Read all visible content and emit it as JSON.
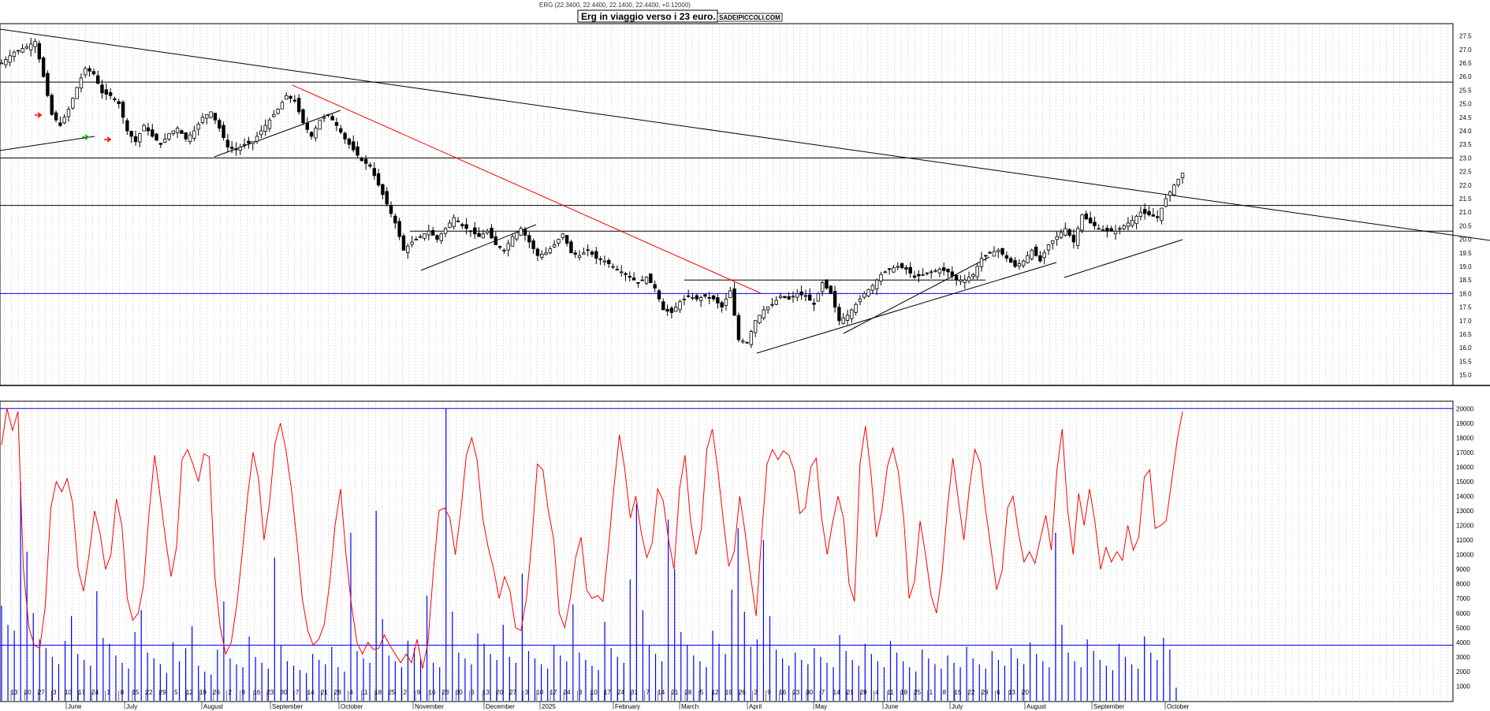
{
  "header": {
    "ohlc_text": "ERG (22.3400, 22.4400, 22.1400, 22.4400, +0.12000)",
    "title_box": "Erg in viaggio verso i 23 euro.",
    "watermark": "SADEIPICCOLI.COM"
  },
  "colors": {
    "background": "#ffffff",
    "grid": "#c8c8c8",
    "candle": "#000000",
    "trendline_black": "#000000",
    "trendline_red": "#ff0000",
    "support_blue": "#0000ff",
    "volume_bar": "#0000ff",
    "oscillator": "#ff0000",
    "arrow_green": "#00aa00",
    "arrow_red": "#ff0000"
  },
  "chart_data": [
    {
      "type": "candlestick",
      "ticker": "ERG",
      "ylim": [
        15.0,
        27.75
      ],
      "y_ticks": [
        "27.5",
        "27.0",
        "26.5",
        "26.0",
        "25.5",
        "25.0",
        "24.5",
        "24.0",
        "23.5",
        "23.0",
        "22.5",
        "22.0",
        "21.5",
        "21.0",
        "20.5",
        "20.0",
        "19.5",
        "19.0",
        "18.5",
        "18.0",
        "17.5",
        "17.0",
        "16.5",
        "16.0",
        "15.5",
        "15.0"
      ],
      "horizontal_levels_black": [
        25.8,
        23.0,
        21.25,
        20.3,
        18.5
      ],
      "horizontal_level_blue": 18.0,
      "price_path": [
        [
          0,
          26.5
        ],
        [
          3,
          26.9
        ],
        [
          6,
          27.1
        ],
        [
          8,
          27.3
        ],
        [
          10,
          26.0
        ],
        [
          12,
          24.6
        ],
        [
          14,
          24.2
        ],
        [
          16,
          24.8
        ],
        [
          18,
          25.6
        ],
        [
          20,
          26.3
        ],
        [
          22,
          26.1
        ],
        [
          24,
          25.4
        ],
        [
          26,
          25.3
        ],
        [
          28,
          25.0
        ],
        [
          30,
          24.0
        ],
        [
          32,
          23.6
        ],
        [
          34,
          24.2
        ],
        [
          36,
          23.8
        ],
        [
          38,
          23.5
        ],
        [
          40,
          23.9
        ],
        [
          42,
          24.1
        ],
        [
          44,
          23.7
        ],
        [
          46,
          24.0
        ],
        [
          48,
          24.5
        ],
        [
          50,
          24.7
        ],
        [
          52,
          24.1
        ],
        [
          54,
          23.4
        ],
        [
          56,
          23.3
        ],
        [
          58,
          23.5
        ],
        [
          60,
          23.6
        ],
        [
          62,
          24.0
        ],
        [
          64,
          24.4
        ],
        [
          66,
          24.8
        ],
        [
          68,
          25.3
        ],
        [
          70,
          25.1
        ],
        [
          72,
          24.3
        ],
        [
          74,
          23.8
        ],
        [
          76,
          24.4
        ],
        [
          78,
          24.6
        ],
        [
          80,
          24.2
        ],
        [
          82,
          23.7
        ],
        [
          84,
          23.3
        ],
        [
          86,
          22.9
        ],
        [
          88,
          22.7
        ],
        [
          90,
          22.0
        ],
        [
          92,
          21.3
        ],
        [
          94,
          20.6
        ],
        [
          96,
          19.6
        ],
        [
          98,
          19.9
        ],
        [
          100,
          20.1
        ],
        [
          102,
          20.3
        ],
        [
          104,
          20.0
        ],
        [
          106,
          20.4
        ],
        [
          108,
          20.8
        ],
        [
          110,
          20.5
        ],
        [
          112,
          20.3
        ],
        [
          114,
          20.1
        ],
        [
          116,
          20.3
        ],
        [
          118,
          19.8
        ],
        [
          120,
          19.6
        ],
        [
          122,
          20.1
        ],
        [
          124,
          20.4
        ],
        [
          126,
          19.9
        ],
        [
          128,
          19.4
        ],
        [
          130,
          19.5
        ],
        [
          132,
          19.8
        ],
        [
          134,
          20.2
        ],
        [
          136,
          19.5
        ],
        [
          138,
          19.4
        ],
        [
          140,
          19.6
        ],
        [
          142,
          19.3
        ],
        [
          144,
          19.2
        ],
        [
          146,
          19.0
        ],
        [
          148,
          18.8
        ],
        [
          150,
          18.6
        ],
        [
          152,
          18.4
        ],
        [
          154,
          18.6
        ],
        [
          156,
          18.2
        ],
        [
          158,
          17.4
        ],
        [
          160,
          17.3
        ],
        [
          162,
          17.7
        ],
        [
          164,
          17.9
        ],
        [
          166,
          17.8
        ],
        [
          168,
          17.9
        ],
        [
          170,
          17.8
        ],
        [
          172,
          17.5
        ],
        [
          174,
          18.1
        ],
        [
          176,
          16.3
        ],
        [
          178,
          16.2
        ],
        [
          180,
          17.0
        ],
        [
          182,
          17.4
        ],
        [
          184,
          17.6
        ],
        [
          186,
          17.9
        ],
        [
          188,
          17.8
        ],
        [
          190,
          18.0
        ],
        [
          192,
          17.9
        ],
        [
          194,
          17.6
        ],
        [
          196,
          18.4
        ],
        [
          198,
          18.0
        ],
        [
          200,
          17.0
        ],
        [
          202,
          17.2
        ],
        [
          204,
          17.6
        ],
        [
          206,
          18.0
        ],
        [
          208,
          18.3
        ],
        [
          210,
          18.7
        ],
        [
          212,
          18.9
        ],
        [
          214,
          19.0
        ],
        [
          216,
          18.9
        ],
        [
          218,
          18.6
        ],
        [
          220,
          18.7
        ],
        [
          222,
          18.8
        ],
        [
          224,
          18.9
        ],
        [
          226,
          18.8
        ],
        [
          228,
          18.5
        ],
        [
          230,
          18.5
        ],
        [
          232,
          18.7
        ],
        [
          234,
          19.3
        ],
        [
          236,
          19.5
        ],
        [
          238,
          19.6
        ],
        [
          240,
          19.3
        ],
        [
          242,
          19.0
        ],
        [
          244,
          19.2
        ],
        [
          246,
          19.6
        ],
        [
          248,
          19.2
        ],
        [
          250,
          19.8
        ],
        [
          252,
          20.1
        ],
        [
          254,
          20.4
        ],
        [
          256,
          19.9
        ],
        [
          258,
          20.9
        ],
        [
          260,
          20.6
        ],
        [
          262,
          20.4
        ],
        [
          264,
          20.3
        ],
        [
          266,
          20.3
        ],
        [
          268,
          20.5
        ],
        [
          270,
          20.7
        ],
        [
          272,
          21.0
        ],
        [
          274,
          20.9
        ],
        [
          276,
          20.8
        ],
        [
          278,
          21.5
        ],
        [
          280,
          22.0
        ],
        [
          282,
          22.44
        ]
      ]
    },
    {
      "type": "bar",
      "series_name": "volume",
      "ylim": [
        0,
        20500
      ],
      "y_ticks": [
        "20000",
        "19000",
        "18000",
        "17000",
        "16000",
        "15000",
        "14000",
        "13000",
        "12000",
        "11000",
        "10000",
        "9000",
        "8000",
        "7000",
        "6000",
        "5000",
        "4000",
        "3000",
        "2000",
        "1000"
      ],
      "horizontal_level": 3800,
      "values": [
        6500,
        5200,
        4800,
        15000,
        10200,
        6000,
        4200,
        3600,
        3000,
        2500,
        4100,
        5800,
        3200,
        2800,
        2400,
        7500,
        4300,
        3900,
        3100,
        2600,
        2200,
        4700,
        6200,
        3300,
        2900,
        2500,
        1900,
        4000,
        2700,
        3600,
        5100,
        2400,
        2000,
        1800,
        3500,
        6800,
        2900,
        2500,
        2300,
        4400,
        3000,
        2600,
        2200,
        9800,
        3800,
        2700,
        2400,
        2100,
        1900,
        3200,
        2800,
        2500,
        3700,
        2300,
        2000,
        11500,
        3400,
        2900,
        2600,
        13000,
        5600,
        3100,
        2700,
        2300,
        4100,
        3600,
        2900,
        7200,
        2600,
        2300,
        20000,
        6100,
        3300,
        2900,
        2500,
        4600,
        3900,
        3200,
        2800,
        5200,
        3000,
        2600,
        8700,
        3400,
        2900,
        2500,
        2200,
        3800,
        3100,
        2700,
        6600,
        3300,
        2800,
        2400,
        2100,
        5400,
        3600,
        3000,
        2600,
        8300,
        13500,
        6200,
        3800,
        3200,
        2700,
        12400,
        9000,
        4700,
        3800,
        3100,
        2700,
        2300,
        4800,
        3900,
        3200,
        7600,
        11800,
        6100,
        3700,
        4200,
        11000,
        5800,
        3500,
        2900,
        2400,
        3300,
        2800,
        2500,
        3600,
        3000,
        2600,
        2300,
        4500,
        3400,
        2800,
        2400,
        3900,
        3200,
        2700,
        2300,
        4100,
        3300,
        2700,
        2300,
        2000,
        3500,
        2900,
        2500,
        2200,
        3100,
        2600,
        2300,
        3700,
        2900,
        2500,
        2200,
        3400,
        2800,
        2400,
        3600,
        2900,
        2500,
        4000,
        3200,
        2700,
        2300,
        11500,
        5200,
        3300,
        2700,
        2300,
        4200,
        3400,
        2800,
        2400,
        2100,
        3900,
        3000,
        2500,
        2200,
        4400,
        3300,
        2800,
        4300,
        3500,
        900
      ]
    },
    {
      "type": "line",
      "series_name": "oscillator",
      "ylim": [
        0,
        20500
      ],
      "values": [
        17500,
        20000,
        18500,
        19800,
        9000,
        5000,
        3800,
        3600,
        6500,
        13200,
        15000,
        14300,
        15200,
        13500,
        9000,
        7500,
        10000,
        13000,
        11500,
        9000,
        10000,
        13800,
        12000,
        7000,
        5500,
        6000,
        8000,
        13000,
        16800,
        14000,
        11000,
        8500,
        10500,
        16500,
        17200,
        16200,
        15000,
        16900,
        16700,
        8500,
        5000,
        3200,
        4000,
        6500,
        10000,
        14000,
        17000,
        15200,
        11000,
        13500,
        17600,
        19000,
        17200,
        14500,
        11000,
        7000,
        4800,
        3800,
        4200,
        5200,
        8000,
        12000,
        14500,
        10000,
        6500,
        4000,
        3200,
        4000,
        3500,
        3600,
        4500,
        3800,
        3200,
        2600,
        3200,
        2600,
        4200,
        2200,
        4000,
        9000,
        13000,
        13200,
        12500,
        10000,
        13000,
        16800,
        18000,
        16400,
        12500,
        10500,
        9000,
        7000,
        8500,
        7500,
        5000,
        4800,
        7000,
        11000,
        16200,
        15800,
        13000,
        11000,
        6000,
        5000,
        7000,
        9800,
        11200,
        7600,
        7000,
        7200,
        6800,
        10500,
        14600,
        18200,
        15800,
        12500,
        14000,
        11500,
        9800,
        10800,
        14500,
        13700,
        11000,
        9000,
        14500,
        16800,
        12400,
        10000,
        11800,
        17200,
        18600,
        15800,
        12400,
        9200,
        10200,
        14000,
        11500,
        8500,
        5800,
        11200,
        16200,
        17200,
        16500,
        17100,
        16800,
        15700,
        12800,
        13200,
        16000,
        16600,
        12500,
        10000,
        12200,
        14000,
        12500,
        8000,
        6800,
        16200,
        18800,
        15600,
        11200,
        13000,
        16000,
        17300,
        15700,
        12500,
        7000,
        8200,
        12300,
        10000,
        7200,
        6000,
        8700,
        13200,
        16600,
        13700,
        11000,
        14500,
        17200,
        16300,
        13000,
        10300,
        7600,
        8900,
        13200,
        14000,
        11500,
        9500,
        10200,
        9400,
        11100,
        12700,
        10300,
        15700,
        18600,
        13000,
        10000,
        14200,
        12000,
        14500,
        12200,
        9000,
        10500,
        9500,
        10200,
        9600,
        12000,
        10300,
        11200,
        15300,
        15800,
        11800,
        12000,
        12300,
        15000,
        17800,
        19800
      ]
    }
  ],
  "x_axis": {
    "day_ticks": [
      "13",
      "20",
      "27",
      "3",
      "10",
      "17",
      "24",
      "1",
      "8",
      "15",
      "22",
      "29",
      "5",
      "12",
      "19",
      "26",
      "2",
      "9",
      "16",
      "23",
      "30",
      "7",
      "14",
      "21",
      "28",
      "4",
      "11",
      "18",
      "25",
      "2",
      "9",
      "16",
      "23",
      "30",
      "6",
      "13",
      "20",
      "27",
      "3",
      "10",
      "17",
      "24",
      "3",
      "10",
      "17",
      "24",
      "31",
      "7",
      "14",
      "21",
      "28",
      "5",
      "12",
      "19",
      "26",
      "2",
      "9",
      "16",
      "23",
      "30",
      "7",
      "14",
      "21",
      "28",
      "4",
      "11",
      "18",
      "25",
      "1",
      "8",
      "15",
      "22",
      "29",
      "6",
      "13",
      "20"
    ],
    "month_labels": [
      "June",
      "July",
      "August",
      "September",
      "October",
      "November",
      "December",
      "2025",
      "February",
      "March",
      "April",
      "May",
      "June",
      "July",
      "August",
      "September",
      "October"
    ]
  }
}
